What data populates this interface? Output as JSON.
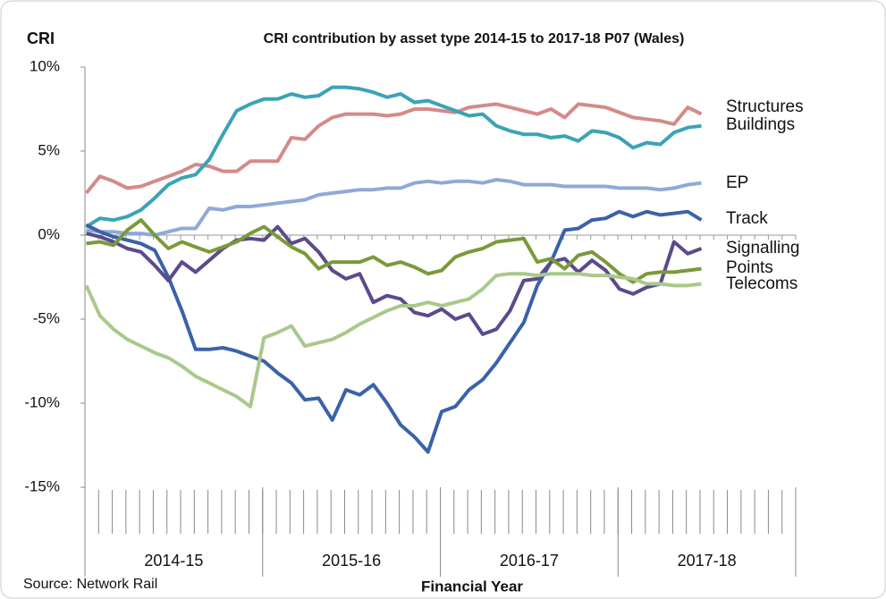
{
  "chart_data": {
    "type": "line",
    "title": "CRI contribution by asset type 2014-15  to 2017-18  P07 (Wales)",
    "y_label": "CRI",
    "x_label": "Financial Year",
    "source": "Source: Network Rail",
    "xgroups": [
      "2014-15",
      "2015-16",
      "2016-17",
      "2017-18"
    ],
    "x": [
      1,
      2,
      3,
      4,
      5,
      6,
      7,
      8,
      9,
      10,
      11,
      12,
      13,
      14,
      15,
      16,
      17,
      18,
      19,
      20,
      21,
      22,
      23,
      24,
      25,
      26,
      27,
      28,
      29,
      30,
      31,
      32,
      33,
      34,
      35,
      36,
      37,
      38,
      39,
      40,
      41,
      42,
      43,
      44,
      45,
      46
    ],
    "xlim": [
      0.9,
      52.9
    ],
    "ylim": [
      -15,
      10
    ],
    "yticks": [
      {
        "value": 10,
        "label": "10%"
      },
      {
        "value": 5,
        "label": "5%"
      },
      {
        "value": 0,
        "label": "0%"
      },
      {
        "value": -5,
        "label": "-5%"
      },
      {
        "value": -10,
        "label": "-10%"
      },
      {
        "value": -15,
        "label": "-15%"
      }
    ],
    "series": [
      {
        "name": "Structures",
        "color": "#d48a8a",
        "values": [
          2.5,
          3.5,
          3.2,
          2.8,
          2.9,
          3.2,
          3.5,
          3.8,
          4.2,
          4.1,
          3.8,
          3.8,
          4.4,
          4.4,
          4.4,
          5.8,
          5.7,
          6.5,
          7.0,
          7.2,
          7.2,
          7.2,
          7.1,
          7.2,
          7.5,
          7.5,
          7.4,
          7.3,
          7.6,
          7.7,
          7.8,
          7.6,
          7.4,
          7.2,
          7.5,
          7.0,
          7.8,
          7.7,
          7.6,
          7.3,
          7.0,
          6.9,
          6.8,
          6.6,
          7.6,
          7.2
        ]
      },
      {
        "name": "Buildings",
        "color": "#3ba3b6",
        "values": [
          0.5,
          1.0,
          0.9,
          1.1,
          1.5,
          2.2,
          3.0,
          3.4,
          3.6,
          4.5,
          6.0,
          7.4,
          7.8,
          8.1,
          8.1,
          8.4,
          8.2,
          8.3,
          8.8,
          8.8,
          8.7,
          8.5,
          8.2,
          8.4,
          7.9,
          8.0,
          7.7,
          7.4,
          7.1,
          7.2,
          6.5,
          6.2,
          6.0,
          6.0,
          5.8,
          5.9,
          5.6,
          6.2,
          6.1,
          5.8,
          5.2,
          5.5,
          5.4,
          6.1,
          6.4,
          6.5
        ]
      },
      {
        "name": "EP",
        "color": "#8fa9d8",
        "values": [
          0.3,
          0.2,
          0.2,
          0.1,
          0.1,
          0.0,
          0.2,
          0.4,
          0.4,
          1.6,
          1.5,
          1.7,
          1.7,
          1.8,
          1.9,
          2.0,
          2.1,
          2.4,
          2.5,
          2.6,
          2.7,
          2.7,
          2.8,
          2.8,
          3.1,
          3.2,
          3.1,
          3.2,
          3.2,
          3.1,
          3.3,
          3.2,
          3.0,
          3.0,
          3.0,
          2.9,
          2.9,
          2.9,
          2.9,
          2.8,
          2.8,
          2.8,
          2.7,
          2.8,
          3.0,
          3.1
        ]
      },
      {
        "name": "Track",
        "color": "#3a62a8",
        "values": [
          0.6,
          0.2,
          -0.1,
          -0.3,
          -0.5,
          -0.9,
          -2.5,
          -4.5,
          -6.8,
          -6.8,
          -6.7,
          -6.9,
          -7.2,
          -7.5,
          -8.2,
          -8.8,
          -9.8,
          -9.7,
          -11.0,
          -9.2,
          -9.5,
          -8.9,
          -10.0,
          -11.3,
          -12.0,
          -12.9,
          -10.5,
          -10.2,
          -9.2,
          -8.6,
          -7.6,
          -6.4,
          -5.2,
          -3.0,
          -1.6,
          0.3,
          0.4,
          0.9,
          1.0,
          1.4,
          1.1,
          1.4,
          1.2,
          1.3,
          1.4,
          0.9
        ]
      },
      {
        "name": "Signalling",
        "color": "#5b4a8c",
        "values": [
          0.1,
          -0.1,
          -0.4,
          -0.8,
          -1.0,
          -1.8,
          -2.7,
          -1.6,
          -2.2,
          -1.5,
          -0.8,
          -0.3,
          -0.2,
          -0.3,
          0.5,
          -0.5,
          -0.2,
          -1.0,
          -2.1,
          -2.6,
          -2.3,
          -4.0,
          -3.6,
          -3.8,
          -4.6,
          -4.8,
          -4.4,
          -5.0,
          -4.7,
          -5.9,
          -5.6,
          -4.5,
          -2.7,
          -2.6,
          -1.6,
          -1.4,
          -2.2,
          -1.5,
          -2.1,
          -3.2,
          -3.5,
          -3.1,
          -2.9,
          -0.4,
          -1.1,
          -0.8
        ]
      },
      {
        "name": "Points",
        "color": "#7a9a3a",
        "values": [
          -0.5,
          -0.4,
          -0.6,
          0.3,
          0.9,
          0.0,
          -0.8,
          -0.4,
          -0.7,
          -1.0,
          -0.7,
          -0.4,
          0.1,
          0.5,
          -0.1,
          -0.7,
          -1.1,
          -2.0,
          -1.6,
          -1.6,
          -1.6,
          -1.3,
          -1.8,
          -1.6,
          -1.9,
          -2.3,
          -2.1,
          -1.3,
          -1.0,
          -0.8,
          -0.4,
          -0.3,
          -0.2,
          -1.6,
          -1.4,
          -2.0,
          -1.2,
          -1.0,
          -1.6,
          -2.3,
          -2.8,
          -2.3,
          -2.2,
          -2.2,
          -2.1,
          -2.0
        ]
      },
      {
        "name": "Telecoms",
        "color": "#a9c98b",
        "values": [
          -3.0,
          -4.8,
          -5.6,
          -6.2,
          -6.6,
          -7.0,
          -7.3,
          -7.8,
          -8.4,
          -8.8,
          -9.2,
          -9.6,
          -10.2,
          -6.1,
          -5.8,
          -5.4,
          -6.6,
          -6.4,
          -6.2,
          -5.8,
          -5.3,
          -4.9,
          -4.5,
          -4.2,
          -4.2,
          -4.0,
          -4.2,
          -4.0,
          -3.8,
          -3.2,
          -2.4,
          -2.3,
          -2.3,
          -2.4,
          -2.3,
          -2.3,
          -2.3,
          -2.4,
          -2.4,
          -2.5,
          -2.6,
          -2.9,
          -2.9,
          -3.0,
          -3.0,
          -2.9
        ]
      }
    ]
  }
}
